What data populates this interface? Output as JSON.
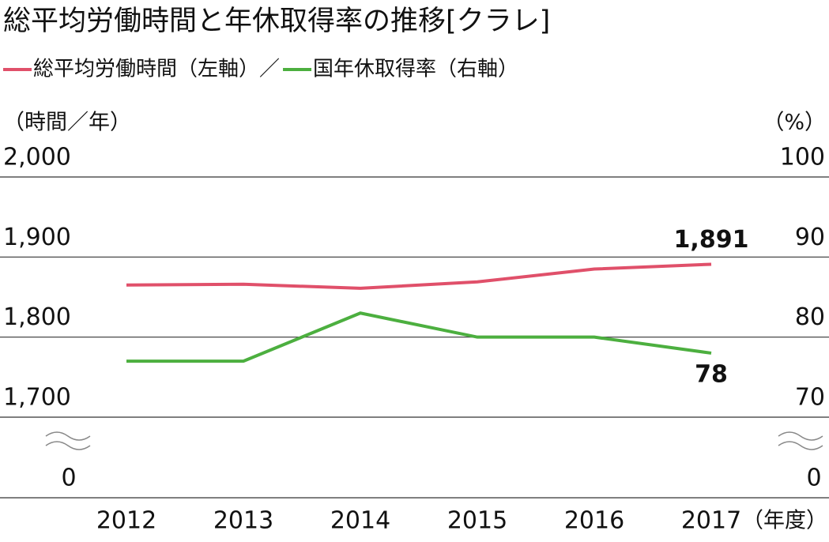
{
  "chart_data": {
    "type": "line",
    "title": "総平均労働時間と年休取得率の推移[クラレ]",
    "legend_separator": "／",
    "y_label": "（時間／年）",
    "y2_label": "（%）",
    "x_label": "（年度）",
    "categories": [
      "2012",
      "2013",
      "2014",
      "2015",
      "2016",
      "2017"
    ],
    "series": [
      {
        "name": "総平均労働時間（左軸）",
        "color": "#e0506a",
        "values": [
          1865,
          1866,
          1861,
          1869,
          1885,
          1891
        ],
        "value_labels": [
          null,
          null,
          null,
          null,
          null,
          "1,891"
        ]
      },
      {
        "name": "国年休取得率（右軸）",
        "color": "#4caf3f",
        "axis": "y2",
        "values": [
          77,
          77,
          83,
          80,
          80,
          78
        ],
        "value_labels": [
          null,
          null,
          null,
          null,
          null,
          "78"
        ]
      }
    ],
    "ylim": [
      1700,
      2000
    ],
    "yticks": [
      {
        "value": 2000,
        "label": "2,000"
      },
      {
        "value": 1900,
        "label": "1,900"
      },
      {
        "value": 1800,
        "label": "1,800"
      },
      {
        "value": 1700,
        "label": "1,700"
      },
      0
    ],
    "y2lim": [
      70,
      100
    ],
    "y2ticks": [
      100,
      90,
      80,
      70,
      0
    ],
    "axis_break": true,
    "grid": true
  }
}
